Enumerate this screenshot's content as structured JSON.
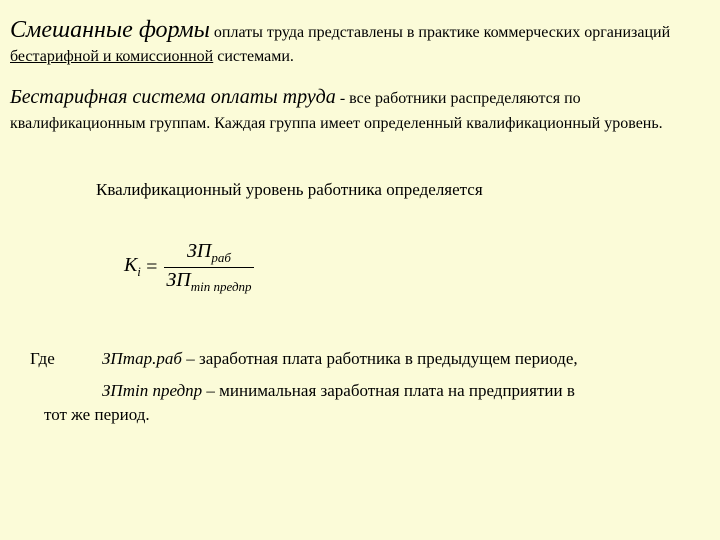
{
  "background_color": "#fbfbd8",
  "text_color": "#000000",
  "font_family": "Georgia, Times New Roman, serif",
  "para1": {
    "lead": "Смешанные формы",
    "lead_fontsize": 24,
    "lead_italic": true,
    "tail1": " оплаты труда представлены в практике коммерческих организаций ",
    "underlined": "бестарифной и комиссионной",
    "tail2": " системами.",
    "body_fontsize": 16
  },
  "para2": {
    "lead": "Бестарифная система оплаты труда",
    "lead_fontsize": 20,
    "lead_italic": true,
    "tail": "  - все работники распределяются по квалификационным группам. Каждая группа имеет определенный квалификационный уровень.",
    "body_fontsize": 16
  },
  "qual_line": {
    "text": "Квалификационный уровень работника определяется",
    "fontsize": 17
  },
  "formula": {
    "lhs_main": "К",
    "lhs_sub": "і",
    "eq": "=",
    "num_main": "ЗП",
    "num_sub": "раб",
    "den_main": "ЗП",
    "den_sub1": "min",
    "den_sub2": " предпр",
    "fontsize": 20,
    "sub_fontsize": 13
  },
  "where": {
    "label": "Где",
    "r1_term": "ЗПтар.раб",
    "r1_dash": " – ",
    "r1_text": "заработная плата работника в предыдущем периоде,",
    "r2_term": "ЗПmin предпр",
    "r2_dash": " – ",
    "r2_text": "минимальная заработная плата на предприятии в",
    "r2_cont": "тот же период.",
    "fontsize": 17
  }
}
